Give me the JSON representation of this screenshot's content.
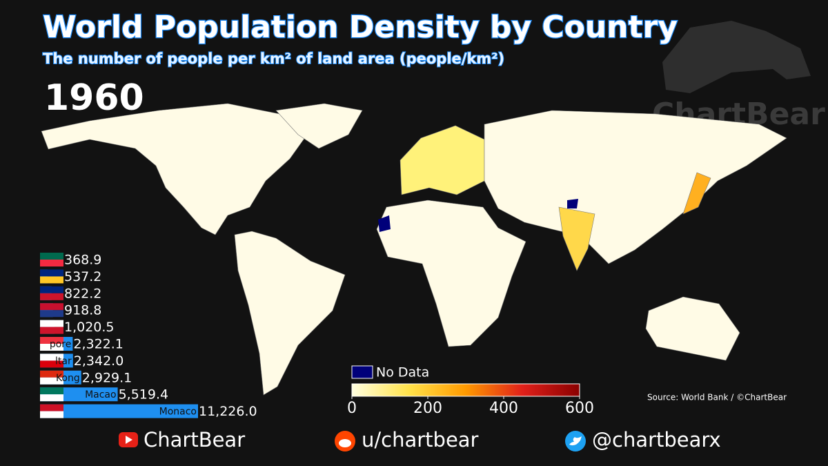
{
  "chart_data": {
    "type": "bar",
    "orientation": "horizontal",
    "title": "World Population Density by Country",
    "subtitle": "The number of people per km² of land area (people/km²)",
    "year": "1960",
    "categories": [
      null,
      null,
      null,
      null,
      null,
      "pore",
      "ltar",
      "Kong",
      "Macao",
      "Monaco"
    ],
    "values": [
      368.9,
      537.2,
      822.2,
      918.8,
      1020.5,
      2322.1,
      2342.0,
      2929.1,
      5519.4,
      11226.0
    ],
    "value_labels": [
      "368.9",
      "537.2",
      "822.2",
      "918.8",
      "1,020.5",
      "2,322.1",
      "2,342.0",
      "2,929.1",
      "5,519.4",
      "11,226.0"
    ],
    "color": "#1e8ff0",
    "colorbar": {
      "lim": [
        0,
        600
      ],
      "ticks": [
        0,
        200,
        400,
        600
      ],
      "colors": [
        "#ffffe0",
        "#ffe24a",
        "#ff9a00",
        "#e0201a",
        "#8a0000"
      ],
      "no_data_label": "No Data",
      "no_data_color": "#00007a"
    },
    "source": "Source: World Bank / ©ChartBear"
  },
  "watermark": "ChartBear",
  "footer": {
    "youtube": "ChartBear",
    "reddit": "u/chartbear",
    "twitter": "@chartbearx"
  }
}
